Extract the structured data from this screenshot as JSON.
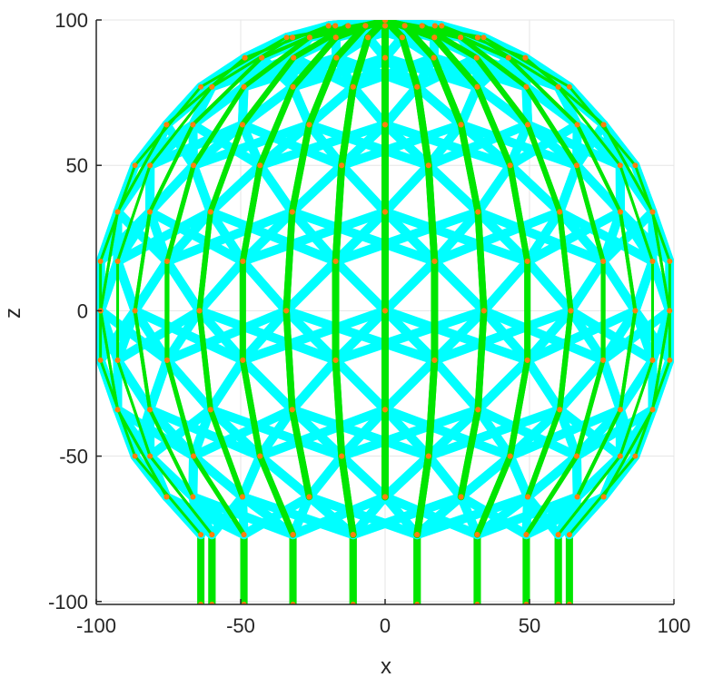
{
  "chart_data": {
    "type": "scatter",
    "title": "",
    "xlabel": "x",
    "ylabel": "z",
    "xlim": [
      -100,
      100
    ],
    "ylim": [
      -101,
      100
    ],
    "x_ticks": [
      -100,
      -50,
      0,
      50,
      100
    ],
    "y_ticks": [
      -100,
      -50,
      0,
      50,
      100
    ],
    "x_tick_labels": [
      "-100",
      "-50",
      "0",
      "50",
      "100"
    ],
    "y_tick_labels": [
      "-100",
      "-50",
      "0",
      "50",
      "100"
    ],
    "grid": true,
    "legend": "none",
    "structure": {
      "sphere_radius": 100,
      "latitude_rings_z": [
        100,
        98,
        94,
        87,
        77,
        64,
        50,
        34,
        17,
        0,
        -17,
        -34,
        -50,
        -64,
        -77
      ],
      "meridians": 18,
      "points_per_ring": 18,
      "cutoff_z": -77,
      "column_base_z": -101,
      "rotation_deg": 20
    },
    "series": [
      {
        "role": "diagonal braces",
        "color": "#00ffff",
        "stroke_width": 10
      },
      {
        "role": "vertical members and columns",
        "color": "#00e600",
        "stroke_width": 8
      },
      {
        "role": "joints",
        "color": "#ff7f0e",
        "marker_radius": 3
      }
    ],
    "colors": {
      "axes": "#262626",
      "grid": "#e5e5e5",
      "background": "#ffffff"
    }
  }
}
